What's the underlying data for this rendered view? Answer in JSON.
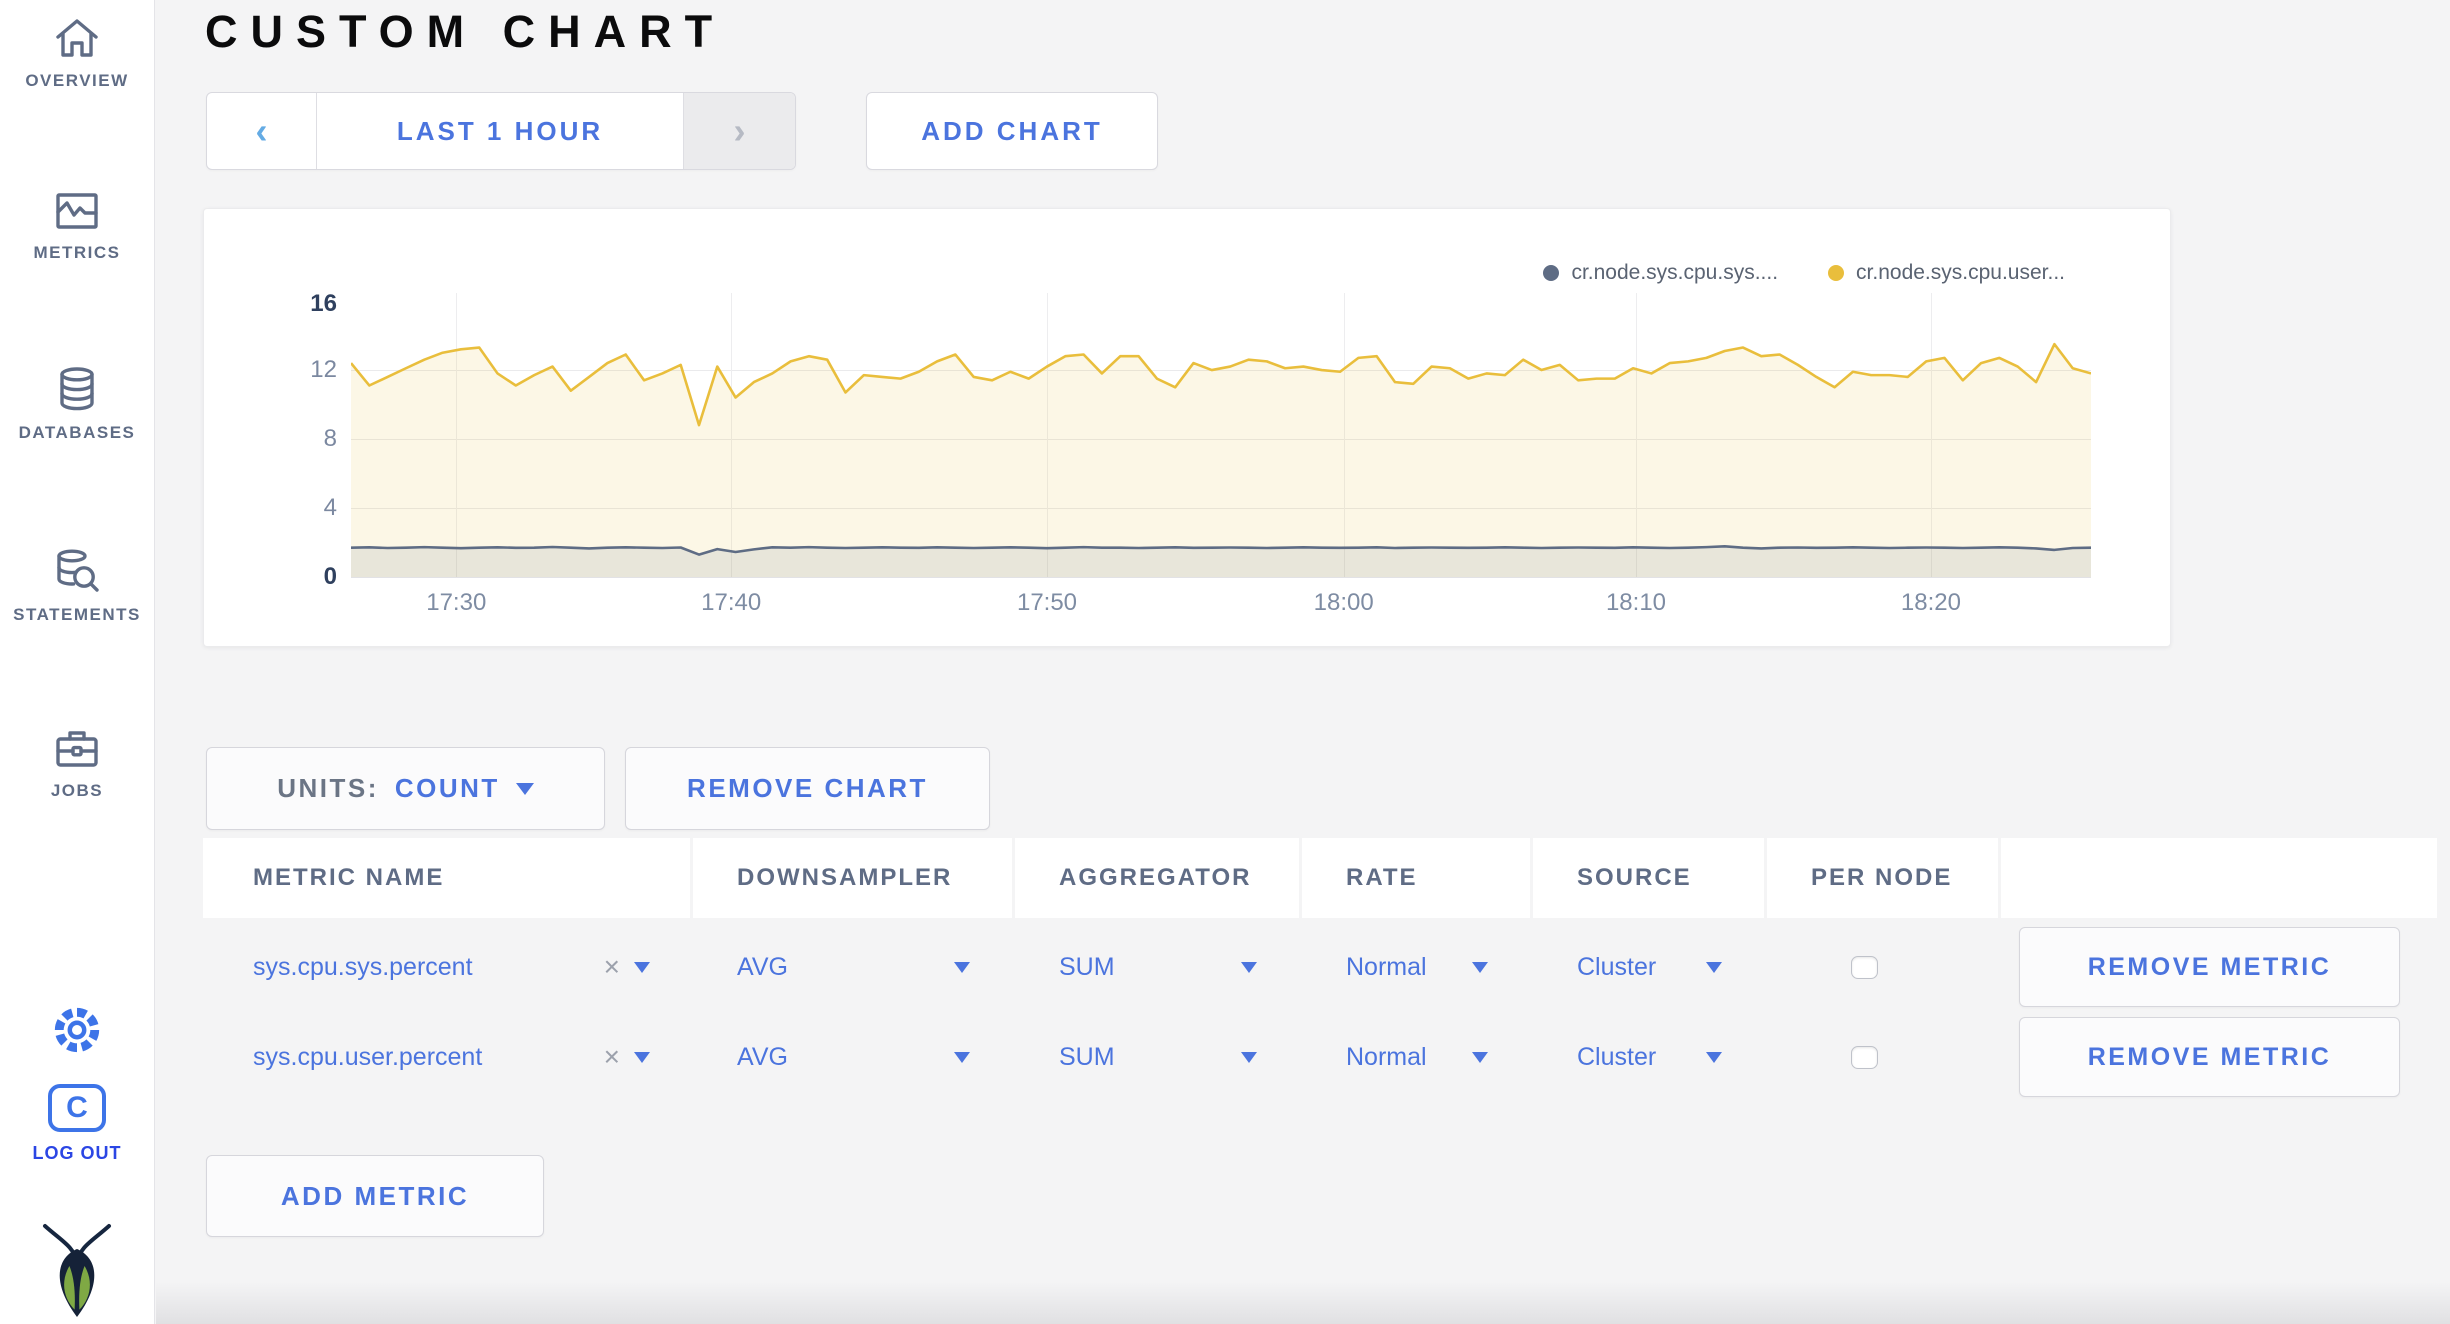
{
  "page_title": "CUSTOM CHART",
  "sidebar": {
    "items": [
      {
        "label": "OVERVIEW"
      },
      {
        "label": "METRICS"
      },
      {
        "label": "DATABASES"
      },
      {
        "label": "STATEMENTS"
      },
      {
        "label": "JOBS"
      }
    ],
    "logout_label": "LOG OUT",
    "logo_letter": "C"
  },
  "toolbar": {
    "prev_arrow": "‹",
    "time_range": "LAST 1 HOUR",
    "next_arrow": "›",
    "add_chart": "ADD CHART"
  },
  "units_bar": {
    "units_prefix": "UNITS:",
    "units_value": "COUNT",
    "remove_chart": "REMOVE CHART"
  },
  "chart_data": {
    "type": "line",
    "title": "",
    "xlabel": "",
    "ylabel": "",
    "ylim": [
      0,
      16
    ],
    "grid": true,
    "legend_position": "top-right",
    "yticks": [
      "16",
      "12",
      "8",
      "4",
      "0"
    ],
    "xticks": [
      {
        "label": "17:30",
        "f": 0.0605
      },
      {
        "label": "17:40",
        "f": 0.2185
      },
      {
        "label": "17:50",
        "f": 0.4
      },
      {
        "label": "18:00",
        "f": 0.5705
      },
      {
        "label": "18:10",
        "f": 0.7385
      },
      {
        "label": "18:20",
        "f": 0.908
      }
    ],
    "legend": [
      {
        "name": "cr.node.sys.cpu.sys....",
        "color": "#5E6C84"
      },
      {
        "name": "cr.node.sys.cpu.user...",
        "color": "#E9BE3C"
      }
    ],
    "x_range": [
      "17:26",
      "18:25"
    ],
    "series": [
      {
        "name": "cr.node.sys.cpu.sys....",
        "color": "#5E6C84",
        "fill": "rgba(94,108,132,0.12)",
        "values": [
          1.7,
          1.72,
          1.68,
          1.7,
          1.73,
          1.7,
          1.67,
          1.7,
          1.72,
          1.69,
          1.7,
          1.74,
          1.7,
          1.66,
          1.7,
          1.72,
          1.7,
          1.68,
          1.71,
          1.3,
          1.62,
          1.45,
          1.6,
          1.72,
          1.7,
          1.73,
          1.7,
          1.68,
          1.7,
          1.72,
          1.7,
          1.69,
          1.72,
          1.7,
          1.68,
          1.7,
          1.72,
          1.7,
          1.67,
          1.7,
          1.73,
          1.7,
          1.7,
          1.68,
          1.7,
          1.72,
          1.69,
          1.7,
          1.71,
          1.7,
          1.68,
          1.7,
          1.72,
          1.7,
          1.69,
          1.7,
          1.72,
          1.68,
          1.7,
          1.71,
          1.7,
          1.69,
          1.7,
          1.72,
          1.7,
          1.68,
          1.7,
          1.71,
          1.7,
          1.69,
          1.72,
          1.7,
          1.68,
          1.7,
          1.73,
          1.78,
          1.7,
          1.66,
          1.7,
          1.71,
          1.69,
          1.7,
          1.72,
          1.7,
          1.68,
          1.7,
          1.71,
          1.7,
          1.68,
          1.7,
          1.72,
          1.7,
          1.66,
          1.57,
          1.68,
          1.7
        ]
      },
      {
        "name": "cr.node.sys.cpu.user...",
        "color": "#E9BE3C",
        "fill": "rgba(233,190,60,0.13)",
        "values": [
          12.4,
          11.1,
          11.6,
          12.1,
          12.6,
          13.0,
          13.2,
          13.3,
          11.8,
          11.1,
          11.7,
          12.2,
          10.8,
          11.6,
          12.4,
          12.9,
          11.4,
          11.8,
          12.3,
          8.8,
          12.2,
          10.4,
          11.3,
          11.8,
          12.5,
          12.8,
          12.6,
          10.7,
          11.7,
          11.6,
          11.5,
          11.9,
          12.5,
          12.9,
          11.6,
          11.4,
          11.9,
          11.5,
          12.2,
          12.8,
          12.9,
          11.8,
          12.8,
          12.8,
          11.5,
          11.0,
          12.4,
          12.0,
          12.2,
          12.6,
          12.5,
          12.1,
          12.2,
          12.0,
          11.9,
          12.7,
          12.8,
          11.3,
          11.2,
          12.2,
          12.1,
          11.5,
          11.8,
          11.7,
          12.6,
          12.0,
          12.3,
          11.4,
          11.5,
          11.5,
          12.1,
          11.8,
          12.4,
          12.5,
          12.7,
          13.1,
          13.3,
          12.8,
          12.9,
          12.3,
          11.6,
          11.0,
          11.9,
          11.7,
          11.7,
          11.6,
          12.5,
          12.7,
          11.4,
          12.4,
          12.7,
          12.2,
          11.3,
          13.5,
          12.1,
          11.8
        ]
      }
    ]
  },
  "metrics_table": {
    "columns": [
      "METRIC NAME",
      "DOWNSAMPLER",
      "AGGREGATOR",
      "RATE",
      "SOURCE",
      "PER NODE",
      ""
    ],
    "clear_symbol": "×",
    "rows": [
      {
        "name": "sys.cpu.sys.percent",
        "downsampler": "AVG",
        "aggregator": "SUM",
        "rate": "Normal",
        "source": "Cluster",
        "per_node_checked": false,
        "remove_label": "REMOVE METRIC"
      },
      {
        "name": "sys.cpu.user.percent",
        "downsampler": "AVG",
        "aggregator": "SUM",
        "rate": "Normal",
        "source": "Cluster",
        "per_node_checked": false,
        "remove_label": "REMOVE METRIC"
      }
    ],
    "add_metric_label": "ADD METRIC"
  }
}
